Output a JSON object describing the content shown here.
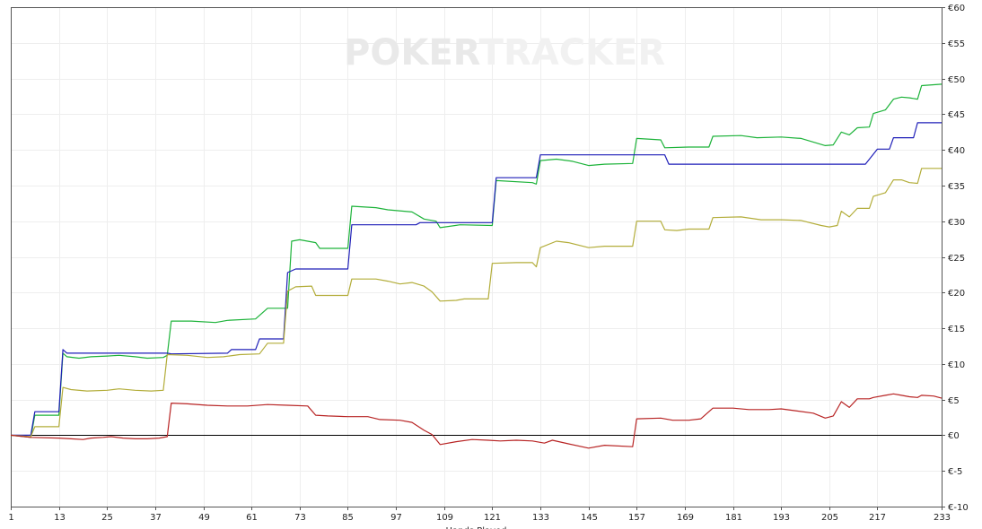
{
  "watermark": {
    "part1": "POKER",
    "part2": "TRACKER"
  },
  "colors": {
    "green": "#1db33a",
    "blue": "#1f1fb8",
    "olive": "#b3ad3a",
    "red": "#b82424",
    "zero_line": "#000000",
    "grid": "#eeeeee"
  },
  "chart_data": {
    "type": "line",
    "xlabel": "Hands Played",
    "ylabel": "",
    "xlim": [
      1,
      233
    ],
    "ylim": [
      -10,
      60
    ],
    "x_ticks": [
      1,
      13,
      25,
      37,
      49,
      61,
      73,
      85,
      97,
      109,
      121,
      133,
      145,
      157,
      169,
      181,
      193,
      205,
      217,
      233
    ],
    "y_ticks": [
      {
        "value": 60,
        "label": "€60"
      },
      {
        "value": 55,
        "label": "€55"
      },
      {
        "value": 50,
        "label": "€50"
      },
      {
        "value": 45,
        "label": "€45"
      },
      {
        "value": 40,
        "label": "€40"
      },
      {
        "value": 35,
        "label": "€35"
      },
      {
        "value": 30,
        "label": "€30"
      },
      {
        "value": 25,
        "label": "€25"
      },
      {
        "value": 20,
        "label": "€20"
      },
      {
        "value": 15,
        "label": "€15"
      },
      {
        "value": 10,
        "label": "€10"
      },
      {
        "value": 5,
        "label": "€5"
      },
      {
        "value": 0,
        "label": "€0"
      },
      {
        "value": -5,
        "label": "€-5"
      },
      {
        "value": -10,
        "label": "€-10"
      }
    ],
    "grid": true,
    "series": [
      {
        "color": "#1db33a",
        "points": [
          [
            1,
            0
          ],
          [
            6,
            -0.3
          ],
          [
            7,
            2.8
          ],
          [
            13,
            2.8
          ],
          [
            14,
            11.5
          ],
          [
            15,
            11
          ],
          [
            18,
            10.8
          ],
          [
            21,
            11
          ],
          [
            25,
            11.1
          ],
          [
            28,
            11.2
          ],
          [
            32,
            11
          ],
          [
            35,
            10.8
          ],
          [
            39,
            10.9
          ],
          [
            40,
            11.2
          ],
          [
            41,
            16
          ],
          [
            46,
            16
          ],
          [
            52,
            15.8
          ],
          [
            55,
            16.1
          ],
          [
            62,
            16.3
          ],
          [
            65,
            17.8
          ],
          [
            70,
            17.8
          ],
          [
            71,
            27.2
          ],
          [
            73,
            27.4
          ],
          [
            77,
            27
          ],
          [
            78,
            26.2
          ],
          [
            85,
            26.2
          ],
          [
            86,
            32.1
          ],
          [
            92,
            31.9
          ],
          [
            95,
            31.6
          ],
          [
            101,
            31.3
          ],
          [
            104,
            30.3
          ],
          [
            107,
            30
          ],
          [
            108,
            29.1
          ],
          [
            113,
            29.5
          ],
          [
            121,
            29.4
          ],
          [
            122,
            35.7
          ],
          [
            131,
            35.4
          ],
          [
            132,
            35.2
          ],
          [
            133,
            38.5
          ],
          [
            137,
            38.7
          ],
          [
            141,
            38.4
          ],
          [
            145,
            37.8
          ],
          [
            149,
            38
          ],
          [
            156,
            38.1
          ],
          [
            157,
            41.6
          ],
          [
            163,
            41.4
          ],
          [
            164,
            40.3
          ],
          [
            170,
            40.4
          ],
          [
            175,
            40.4
          ],
          [
            176,
            41.9
          ],
          [
            183,
            42
          ],
          [
            187,
            41.7
          ],
          [
            193,
            41.8
          ],
          [
            198,
            41.6
          ],
          [
            204,
            40.6
          ],
          [
            206,
            40.7
          ],
          [
            208,
            42.5
          ],
          [
            210,
            42.1
          ],
          [
            212,
            43.1
          ],
          [
            215,
            43.2
          ],
          [
            216,
            45.1
          ],
          [
            219,
            45.6
          ],
          [
            221,
            47.1
          ],
          [
            223,
            47.4
          ],
          [
            225,
            47.3
          ],
          [
            227,
            47.1
          ],
          [
            228,
            49
          ],
          [
            233,
            49.2
          ]
        ]
      },
      {
        "color": "#1f1fb8",
        "points": [
          [
            1,
            0
          ],
          [
            6,
            0
          ],
          [
            7,
            3.3
          ],
          [
            13,
            3.3
          ],
          [
            14,
            12
          ],
          [
            15,
            11.5
          ],
          [
            40,
            11.5
          ],
          [
            41,
            11.4
          ],
          [
            55,
            11.5
          ],
          [
            56,
            12
          ],
          [
            62,
            12
          ],
          [
            63,
            13.5
          ],
          [
            69,
            13.5
          ],
          [
            70,
            22.8
          ],
          [
            72,
            23.3
          ],
          [
            85,
            23.3
          ],
          [
            86,
            29.5
          ],
          [
            102,
            29.5
          ],
          [
            103,
            29.8
          ],
          [
            121,
            29.8
          ],
          [
            122,
            36.1
          ],
          [
            132,
            36.1
          ],
          [
            133,
            39.3
          ],
          [
            164,
            39.3
          ],
          [
            165,
            38
          ],
          [
            214,
            38
          ],
          [
            217,
            40.1
          ],
          [
            220,
            40.1
          ],
          [
            221,
            41.7
          ],
          [
            226,
            41.7
          ],
          [
            227,
            43.8
          ],
          [
            233,
            43.8
          ]
        ]
      },
      {
        "color": "#b3ad3a",
        "points": [
          [
            1,
            0
          ],
          [
            6,
            -0.2
          ],
          [
            7,
            1.2
          ],
          [
            13,
            1.2
          ],
          [
            14,
            6.7
          ],
          [
            16,
            6.4
          ],
          [
            20,
            6.2
          ],
          [
            25,
            6.3
          ],
          [
            28,
            6.5
          ],
          [
            32,
            6.3
          ],
          [
            36,
            6.2
          ],
          [
            39,
            6.3
          ],
          [
            40,
            11.3
          ],
          [
            45,
            11.2
          ],
          [
            50,
            10.9
          ],
          [
            54,
            11
          ],
          [
            58,
            11.3
          ],
          [
            63,
            11.4
          ],
          [
            65,
            12.9
          ],
          [
            69,
            12.9
          ],
          [
            70,
            20.2
          ],
          [
            72,
            20.8
          ],
          [
            76,
            20.9
          ],
          [
            77,
            19.6
          ],
          [
            85,
            19.6
          ],
          [
            86,
            21.9
          ],
          [
            92,
            21.9
          ],
          [
            95,
            21.6
          ],
          [
            98,
            21.2
          ],
          [
            101,
            21.4
          ],
          [
            104,
            20.9
          ],
          [
            106,
            20.1
          ],
          [
            108,
            18.8
          ],
          [
            112,
            18.9
          ],
          [
            114,
            19.1
          ],
          [
            120,
            19.1
          ],
          [
            121,
            24.1
          ],
          [
            127,
            24.2
          ],
          [
            131,
            24.2
          ],
          [
            132,
            23.6
          ],
          [
            133,
            26.3
          ],
          [
            137,
            27.2
          ],
          [
            140,
            27
          ],
          [
            145,
            26.3
          ],
          [
            149,
            26.5
          ],
          [
            156,
            26.5
          ],
          [
            157,
            30
          ],
          [
            163,
            30
          ],
          [
            164,
            28.8
          ],
          [
            167,
            28.7
          ],
          [
            170,
            28.9
          ],
          [
            175,
            28.9
          ],
          [
            176,
            30.5
          ],
          [
            183,
            30.6
          ],
          [
            188,
            30.2
          ],
          [
            193,
            30.2
          ],
          [
            198,
            30.1
          ],
          [
            203,
            29.4
          ],
          [
            205,
            29.2
          ],
          [
            207,
            29.4
          ],
          [
            208,
            31.4
          ],
          [
            210,
            30.6
          ],
          [
            212,
            31.8
          ],
          [
            215,
            31.8
          ],
          [
            216,
            33.5
          ],
          [
            219,
            34
          ],
          [
            221,
            35.8
          ],
          [
            223,
            35.8
          ],
          [
            225,
            35.4
          ],
          [
            227,
            35.3
          ],
          [
            228,
            37.4
          ],
          [
            233,
            37.4
          ]
        ]
      },
      {
        "color": "#b82424",
        "points": [
          [
            1,
            0
          ],
          [
            6,
            -0.3
          ],
          [
            13,
            -0.4
          ],
          [
            16,
            -0.5
          ],
          [
            19,
            -0.6
          ],
          [
            21,
            -0.4
          ],
          [
            24,
            -0.3
          ],
          [
            26,
            -0.2
          ],
          [
            29,
            -0.4
          ],
          [
            32,
            -0.5
          ],
          [
            35,
            -0.5
          ],
          [
            38,
            -0.4
          ],
          [
            40,
            -0.2
          ],
          [
            41,
            4.5
          ],
          [
            45,
            4.4
          ],
          [
            50,
            4.2
          ],
          [
            55,
            4.1
          ],
          [
            60,
            4.1
          ],
          [
            65,
            4.3
          ],
          [
            70,
            4.2
          ],
          [
            75,
            4.1
          ],
          [
            77,
            2.8
          ],
          [
            80,
            2.7
          ],
          [
            85,
            2.6
          ],
          [
            90,
            2.6
          ],
          [
            93,
            2.2
          ],
          [
            98,
            2.1
          ],
          [
            101,
            1.8
          ],
          [
            104,
            0.7
          ],
          [
            106,
            0.1
          ],
          [
            108,
            -1.3
          ],
          [
            112,
            -0.9
          ],
          [
            116,
            -0.6
          ],
          [
            120,
            -0.7
          ],
          [
            123,
            -0.8
          ],
          [
            127,
            -0.7
          ],
          [
            131,
            -0.8
          ],
          [
            134,
            -1.1
          ],
          [
            136,
            -0.7
          ],
          [
            140,
            -1.2
          ],
          [
            145,
            -1.8
          ],
          [
            149,
            -1.4
          ],
          [
            156,
            -1.6
          ],
          [
            157,
            2.3
          ],
          [
            163,
            2.4
          ],
          [
            166,
            2.1
          ],
          [
            170,
            2.1
          ],
          [
            173,
            2.3
          ],
          [
            176,
            3.8
          ],
          [
            181,
            3.8
          ],
          [
            185,
            3.6
          ],
          [
            190,
            3.6
          ],
          [
            193,
            3.7
          ],
          [
            197,
            3.4
          ],
          [
            201,
            3.1
          ],
          [
            204,
            2.4
          ],
          [
            206,
            2.7
          ],
          [
            208,
            4.7
          ],
          [
            210,
            3.9
          ],
          [
            212,
            5.1
          ],
          [
            215,
            5.1
          ],
          [
            216,
            5.3
          ],
          [
            219,
            5.6
          ],
          [
            221,
            5.8
          ],
          [
            223,
            5.6
          ],
          [
            225,
            5.4
          ],
          [
            227,
            5.3
          ],
          [
            228,
            5.6
          ],
          [
            231,
            5.5
          ],
          [
            233,
            5.2
          ]
        ]
      }
    ]
  }
}
